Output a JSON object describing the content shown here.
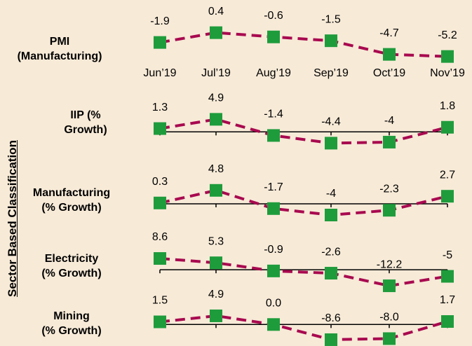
{
  "group_label": "Sector Based Classification",
  "chart_data": [
    {
      "type": "line",
      "title": "PMI\n(Manufacturing)",
      "categories": [
        "Jun’19",
        "Jul’19",
        "Aug’19",
        "Sep’19",
        "Oct’19",
        "Nov’19"
      ],
      "values": [
        -1.9,
        0.4,
        -0.6,
        -1.5,
        -4.7,
        -5.2
      ],
      "ylim": [
        -6,
        1
      ],
      "zero_line": false,
      "color": "#a8094f",
      "marker_color": "#1e9c3c"
    },
    {
      "type": "line",
      "title": "IIP (%\nGrowth)",
      "values": [
        1.3,
        4.9,
        -1.4,
        -4.4,
        -4.0,
        1.8
      ],
      "ylim": [
        -5,
        5
      ],
      "zero_line": true,
      "color": "#a8094f",
      "marker_color": "#1e9c3c"
    },
    {
      "type": "line",
      "title": "Manufacturing\n(% Growth)",
      "values": [
        0.3,
        4.8,
        -1.7,
        -4.0,
        -2.3,
        2.7
      ],
      "ylim": [
        -5,
        5
      ],
      "zero_line": true,
      "color": "#a8094f",
      "marker_color": "#1e9c3c"
    },
    {
      "type": "line",
      "title": "Electricity\n(% Growth)",
      "values": [
        8.6,
        5.3,
        -0.9,
        -2.6,
        -12.2,
        -5.0
      ],
      "ylim": [
        -15,
        10
      ],
      "zero_line": true,
      "color": "#a8094f",
      "marker_color": "#1e9c3c"
    },
    {
      "type": "line",
      "title": "Mining\n(% Growth)",
      "values": [
        1.5,
        4.9,
        0.0,
        -8.6,
        -8.0,
        1.7
      ],
      "value_labels": [
        "1.5",
        "4.9",
        "0.0",
        "-8.6",
        "-8.0",
        "1.7"
      ],
      "ylim": [
        -10,
        5
      ],
      "zero_line": true,
      "color": "#a8094f",
      "marker_color": "#1e9c3c"
    }
  ]
}
